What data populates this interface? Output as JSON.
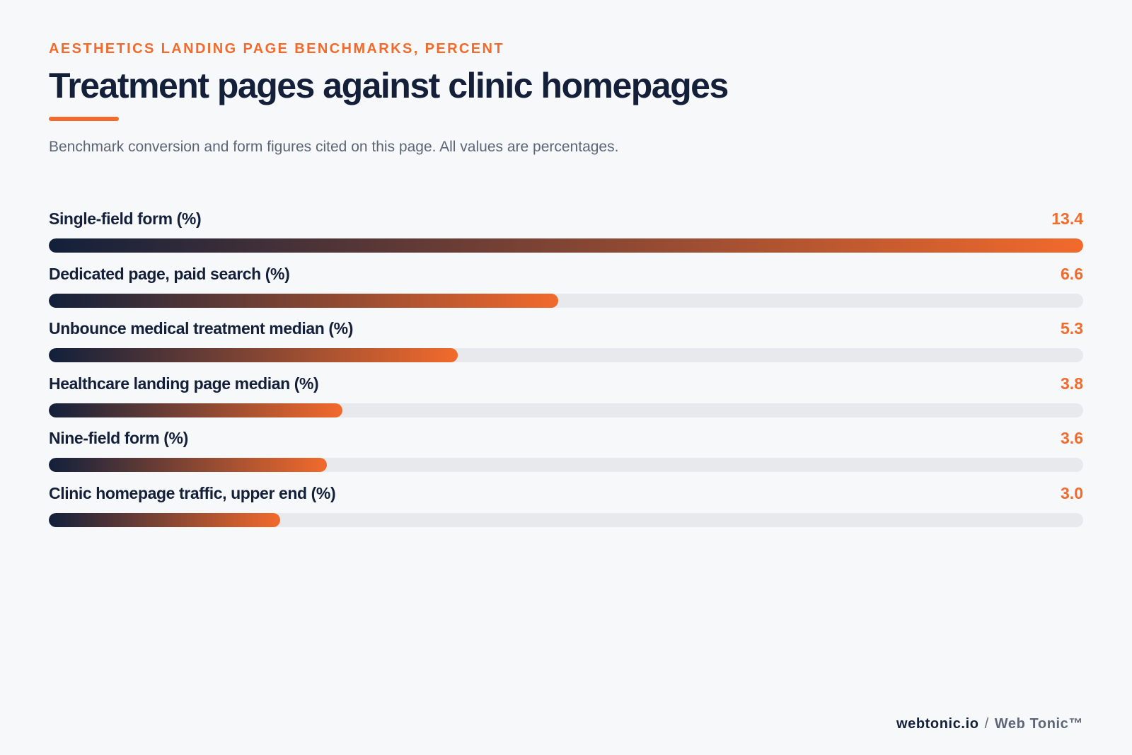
{
  "header": {
    "eyebrow": "AESTHETICS LANDING PAGE BENCHMARKS, PERCENT",
    "title": "Treatment pages against clinic homepages",
    "subtitle": "Benchmark conversion and form figures cited on this page. All values are percentages."
  },
  "chart_data": {
    "type": "bar",
    "orientation": "horizontal",
    "categories": [
      "Single-field form (%)",
      "Dedicated page, paid search (%)",
      "Unbounce medical treatment median (%)",
      "Healthcare landing page median (%)",
      "Nine-field form (%)",
      "Clinic homepage traffic, upper end (%)"
    ],
    "values": [
      13.4,
      6.6,
      5.3,
      3.8,
      3.6,
      3.0
    ],
    "value_labels": [
      "13.4",
      "6.6",
      "5.3",
      "3.8",
      "3.6",
      "3.0"
    ],
    "xlim": [
      0,
      13.4
    ],
    "grid": false,
    "legend": "none",
    "colors": {
      "bar_start": "#12203b",
      "bar_end": "#f26a2c",
      "track": "#e7e9ed",
      "value_text": "#f26a2c"
    }
  },
  "footer": {
    "site": "webtonic.io",
    "separator": "/",
    "brand": "Web Tonic™"
  },
  "colors": {
    "accent": "#f26a2c",
    "navy": "#14203a",
    "muted": "#5d6678",
    "background": "#f7f8fa"
  }
}
